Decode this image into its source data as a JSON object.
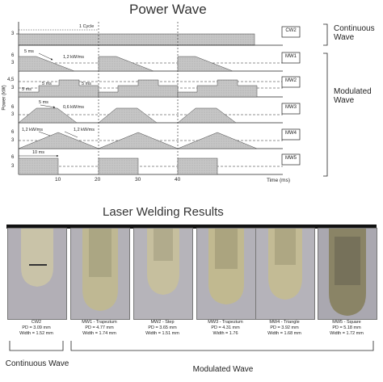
{
  "power_wave": {
    "title": "Power Wave",
    "y_axis_label": "Power (kW)",
    "x_axis_label": "Time (ms)",
    "x_ticks": [
      "10",
      "20",
      "30",
      "40"
    ],
    "cycle_label": "1 Cycle",
    "rows": [
      {
        "id": "CW2",
        "ticks": [
          "3"
        ],
        "annotations": []
      },
      {
        "id": "MW1",
        "ticks": [
          "6",
          "3"
        ],
        "annotations": [
          "5 ms",
          "1,2 kW/ms"
        ]
      },
      {
        "id": "MW2",
        "ticks": [
          "4,5",
          "3"
        ],
        "annotations": [
          "5 ms",
          "5 ms",
          "5 ms"
        ]
      },
      {
        "id": "MW3",
        "ticks": [
          "6",
          "3"
        ],
        "annotations": [
          "5 ms",
          "0,6 kW/ms"
        ]
      },
      {
        "id": "MW4",
        "ticks": [
          "6",
          "3"
        ],
        "annotations": [
          "1,2 kW/ms",
          "1,2 kW/ms"
        ]
      },
      {
        "id": "MW5",
        "ticks": [
          "6",
          "3"
        ],
        "annotations": [
          "10 ms"
        ]
      }
    ],
    "groups": [
      "Continuous Wave",
      "Modulated Wave"
    ]
  },
  "welding": {
    "title": "Laser Welding Results",
    "samples": [
      {
        "name": "CW2",
        "pd": "PD = 3.09 mm",
        "width": "Width = 1.52 mm"
      },
      {
        "name": "MW1 - Trapezium",
        "pd": "PD = 4.77 mm",
        "width": "Width = 1.74 mm"
      },
      {
        "name": "MW2 - Step",
        "pd": "PD = 3.65 mm",
        "width": "Width = 1.51 mm"
      },
      {
        "name": "MW3 - Trapezium",
        "pd": "PD = 4.31 mm",
        "width": "Width = 1.76"
      },
      {
        "name": "MW4 - Triangle",
        "pd": "PD = 3.92 mm",
        "width": "Width = 1.68 mm"
      },
      {
        "name": "MW5 - Square",
        "pd": "PD = 5.18 mm",
        "width": "Width = 1.72 mm"
      }
    ],
    "groups": [
      "Continuous Wave",
      "Modulated Wave"
    ]
  }
}
